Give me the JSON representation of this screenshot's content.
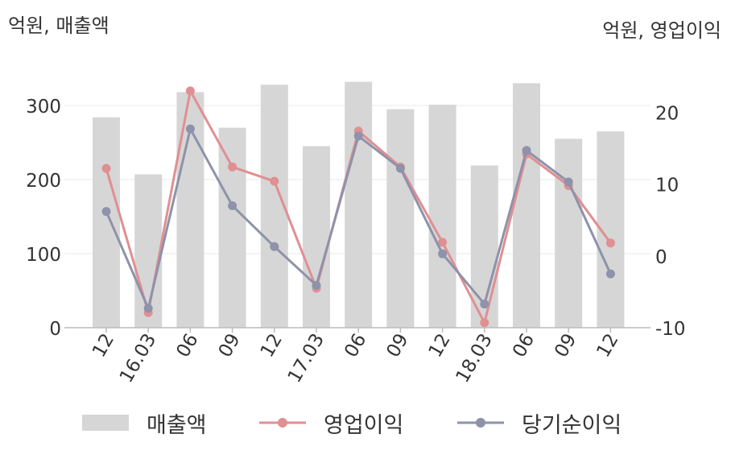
{
  "units": {
    "left": "억원, 매출액",
    "right": "억원, 영업이익"
  },
  "legend": [
    {
      "label": "매출액",
      "color": "#d6d6d6",
      "kind": "bar"
    },
    {
      "label": "영업이익",
      "color": "#e08f92",
      "kind": "line"
    },
    {
      "label": "당기순이익",
      "color": "#8e92aa",
      "kind": "line"
    }
  ],
  "chart_data": {
    "type": "bar",
    "categories": [
      "12",
      "16.03",
      "06",
      "09",
      "12",
      "17.03",
      "06",
      "09",
      "12",
      "18.03",
      "06",
      "09",
      "12"
    ],
    "y_left": {
      "label": "억원, 매출액",
      "range": [
        0,
        350
      ],
      "ticks": [
        0,
        100,
        200,
        300
      ]
    },
    "y_right": {
      "label": "억원, 영업이익",
      "range": [
        -10,
        25
      ],
      "ticks": [
        -10,
        0,
        10,
        20
      ]
    },
    "grid": true,
    "legend_position": "bottom",
    "series": [
      {
        "name": "매출액",
        "type": "bar",
        "axis": "left",
        "color": "#d6d6d6",
        "values": [
          284,
          207,
          318,
          270,
          328,
          245,
          332,
          295,
          301,
          219,
          330,
          255,
          265
        ]
      },
      {
        "name": "영업이익",
        "type": "line",
        "axis": "right",
        "color": "#e08f92",
        "values": [
          12.2,
          -7.9,
          23.0,
          12.4,
          10.4,
          -4.5,
          17.4,
          12.4,
          1.9,
          -9.3,
          14.2,
          9.8,
          1.8
        ]
      },
      {
        "name": "당기순이익",
        "type": "line",
        "axis": "right",
        "color": "#8e92aa",
        "values": [
          6.2,
          -7.3,
          17.7,
          7.0,
          1.3,
          -4.1,
          16.7,
          12.2,
          0.3,
          -6.7,
          14.7,
          10.3,
          -2.5
        ]
      }
    ]
  }
}
